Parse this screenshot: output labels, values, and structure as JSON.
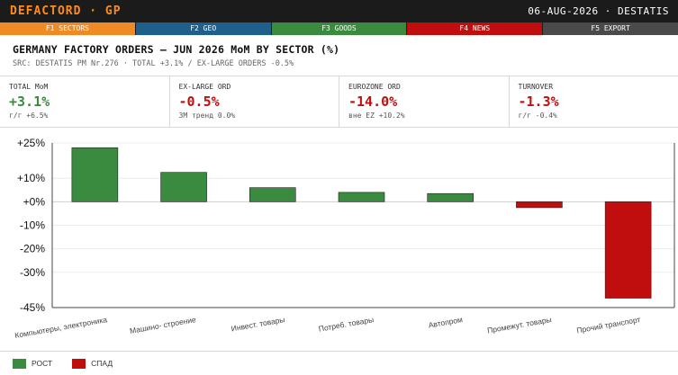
{
  "header": {
    "brand": "DEFACTORD · GP",
    "datestamp": "06-AUG-2026 · DESTATIS"
  },
  "fkeys": [
    {
      "label": "F1 SECTORS",
      "color": "#f08a24",
      "active": true
    },
    {
      "label": "F2 GEO",
      "color": "#1f5f8b"
    },
    {
      "label": "F3 GOODS",
      "color": "#3a8a3f"
    },
    {
      "label": "F4 NEWS",
      "color": "#c00d0d"
    },
    {
      "label": "F5 EXPORT",
      "color": "#4a4a4a"
    }
  ],
  "title": "GERMANY FACTORY ORDERS — JUN 2026 MoM BY SECTOR (%)",
  "subtitle": "SRC: DESTATIS PM Nr.276 · TOTAL +3.1% / EX-LARGE ORDERS -0.5%",
  "kpis": [
    {
      "label": "TOTAL MoM",
      "value": "+3.1%",
      "sub": "г/г +6.5%",
      "color": "#3a8a3f"
    },
    {
      "label": "EX-LARGE ORD",
      "value": "-0.5%",
      "sub": "3М тренд 0.0%",
      "color": "#c00d0d"
    },
    {
      "label": "EUROZONE ORD",
      "value": "-14.0%",
      "sub": "вне EZ +10.2%",
      "color": "#c00d0d"
    },
    {
      "label": "TURNOVER",
      "value": "-1.3%",
      "sub": "г/г -0.4%",
      "color": "#c00d0d"
    }
  ],
  "chart_data": {
    "type": "bar",
    "categories": [
      "Компьютеры, электроника",
      "Машино- строение",
      "Инвест. товары",
      "Потреб. товары",
      "Автопром",
      "Промежут. товары",
      "Прочий транспорт"
    ],
    "values": [
      23,
      12.5,
      6,
      4,
      3.5,
      -2.5,
      -41
    ],
    "ylim": [
      -45,
      25
    ],
    "yticks": [
      -45,
      -30,
      -20,
      -10,
      0,
      10,
      25
    ],
    "ytick_labels": [
      "-45%",
      "-30%",
      "-20%",
      "-10%",
      "+0%",
      "+10%",
      "+25%"
    ],
    "colors": {
      "positive": "#3a8a3f",
      "negative": "#c00d0d"
    }
  },
  "legend": [
    {
      "label": "РОСТ",
      "color": "#3a8a3f"
    },
    {
      "label": "СПАД",
      "color": "#c00d0d"
    }
  ]
}
